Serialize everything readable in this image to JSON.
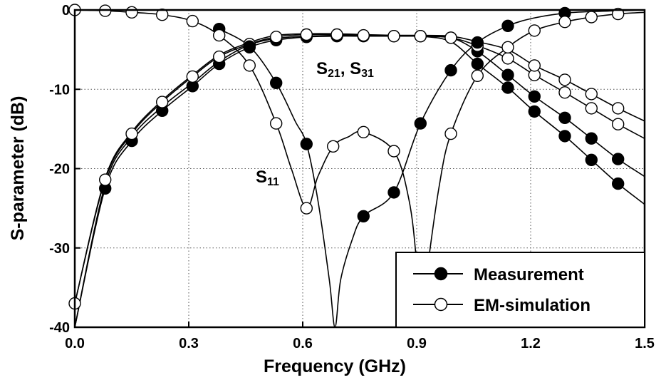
{
  "chart_data": {
    "type": "line",
    "title": "",
    "xlabel": "Frequency (GHz)",
    "ylabel": "S-parameter (dB)",
    "xlim": [
      0.0,
      1.5
    ],
    "ylim": [
      -40,
      0
    ],
    "xticks": [
      0.0,
      0.3,
      0.6,
      0.9,
      1.2,
      1.5
    ],
    "xtick_labels": [
      "0.0",
      "0.3",
      "0.6",
      "0.9",
      "1.2",
      "1.5"
    ],
    "yticks": [
      0,
      -10,
      -20,
      -30,
      -40
    ],
    "ytick_labels": [
      "0",
      "-10",
      "-20",
      "-30",
      "-40"
    ],
    "grid": true,
    "annotations": [
      {
        "main": "S",
        "sub1": "21",
        "sep": ", S",
        "sub2": "31",
        "x": 0.76,
        "y": -7.8
      },
      {
        "main": "S",
        "sub1": "11",
        "sep": "",
        "sub2": "",
        "x": 0.48,
        "y": -21.8
      }
    ],
    "legend": {
      "position": "bottom-right",
      "entries": [
        {
          "label": "Measurement",
          "marker": "filled-circle"
        },
        {
          "label": "EM-simulation",
          "marker": "open-circle"
        }
      ]
    },
    "series": [
      {
        "group": "S21-measurement",
        "marker": "filled",
        "x": [
          0.0,
          0.08,
          0.15,
          0.23,
          0.31,
          0.38,
          0.46,
          0.53,
          0.61,
          0.69,
          0.76,
          0.84,
          0.91,
          0.99,
          1.06,
          1.14,
          1.21,
          1.29,
          1.36,
          1.43,
          1.5
        ],
        "y": [
          -40.0,
          -22.5,
          -16.5,
          -12.7,
          -9.6,
          -6.8,
          -4.7,
          -3.8,
          -3.4,
          -3.3,
          -3.3,
          -3.3,
          -3.3,
          -3.5,
          -5.2,
          -8.2,
          -10.9,
          -13.6,
          -16.2,
          -18.8,
          -21.0
        ],
        "markers_at": [
          0.08,
          0.15,
          0.23,
          0.31,
          0.38,
          0.46,
          0.53,
          0.61,
          0.69,
          0.76,
          0.84,
          0.91,
          0.99,
          1.06,
          1.14,
          1.21,
          1.29,
          1.36,
          1.43
        ]
      },
      {
        "group": "S31-measurement",
        "marker": "filled",
        "x": [
          0.0,
          0.08,
          0.15,
          0.23,
          0.31,
          0.38,
          0.46,
          0.53,
          0.61,
          0.69,
          0.76,
          0.84,
          0.91,
          0.99,
          1.06,
          1.14,
          1.21,
          1.29,
          1.36,
          1.43,
          1.5
        ],
        "y": [
          -40.0,
          -22.0,
          -16.0,
          -12.2,
          -9.2,
          -6.5,
          -4.4,
          -3.6,
          -3.3,
          -3.2,
          -3.2,
          -3.2,
          -3.3,
          -4.0,
          -6.8,
          -9.8,
          -12.8,
          -15.9,
          -18.9,
          -21.9,
          -24.5
        ],
        "markers_at": [
          1.06,
          1.14,
          1.21,
          1.29,
          1.36,
          1.43
        ]
      },
      {
        "group": "S21-simulation",
        "marker": "open",
        "x": [
          0.0,
          0.08,
          0.15,
          0.23,
          0.31,
          0.38,
          0.46,
          0.53,
          0.61,
          0.69,
          0.76,
          0.84,
          0.91,
          0.99,
          1.06,
          1.14,
          1.21,
          1.29,
          1.36,
          1.43,
          1.5
        ],
        "y": [
          -37.0,
          -21.4,
          -15.6,
          -11.6,
          -8.4,
          -5.9,
          -4.3,
          -3.4,
          -3.1,
          -3.1,
          -3.2,
          -3.3,
          -3.3,
          -3.5,
          -4.5,
          -6.1,
          -8.2,
          -10.4,
          -12.4,
          -14.4,
          -16.2
        ],
        "markers_at": [
          0.0,
          0.08,
          0.15,
          0.23,
          0.31,
          0.38,
          0.46,
          0.53,
          0.61,
          0.69,
          0.76,
          0.84,
          0.91,
          0.99,
          1.06,
          1.14,
          1.21,
          1.29,
          1.36,
          1.43
        ]
      },
      {
        "group": "S31-simulation",
        "marker": "open",
        "x": [
          0.0,
          0.08,
          0.15,
          0.23,
          0.31,
          0.38,
          0.46,
          0.53,
          0.61,
          0.69,
          0.76,
          0.84,
          0.91,
          0.99,
          1.06,
          1.14,
          1.21,
          1.29,
          1.36,
          1.43,
          1.5
        ],
        "y": [
          -37.0,
          -21.2,
          -15.4,
          -11.4,
          -8.2,
          -5.7,
          -4.1,
          -3.2,
          -3.0,
          -3.0,
          -3.1,
          -3.2,
          -3.2,
          -3.3,
          -4.0,
          -5.0,
          -7.0,
          -8.8,
          -10.6,
          -12.4,
          -14.0
        ],
        "markers_at": [
          1.21,
          1.29,
          1.36,
          1.43
        ]
      },
      {
        "group": "S11-measurement",
        "marker": "filled",
        "x": [
          0.38,
          0.46,
          0.53,
          0.58,
          0.61,
          0.64,
          0.67,
          0.685,
          0.7,
          0.73,
          0.76,
          0.84,
          0.91,
          0.99,
          1.06,
          1.14,
          1.21,
          1.29,
          1.36,
          1.43,
          1.5
        ],
        "y": [
          -2.4,
          -4.6,
          -9.2,
          -14.0,
          -16.9,
          -24.0,
          -34.0,
          -40.0,
          -34.0,
          -29.0,
          -26.0,
          -23.0,
          -14.3,
          -7.6,
          -4.1,
          -2.0,
          -1.0,
          -0.4,
          -0.2,
          -0.1,
          0.0
        ],
        "markers_at": [
          0.38,
          0.46,
          0.53,
          0.61,
          0.76,
          0.84,
          0.91,
          0.99,
          1.06,
          1.14,
          1.29
        ]
      },
      {
        "group": "S11-simulation",
        "marker": "open",
        "x": [
          0.0,
          0.08,
          0.15,
          0.23,
          0.31,
          0.38,
          0.46,
          0.53,
          0.57,
          0.61,
          0.64,
          0.68,
          0.72,
          0.76,
          0.84,
          0.88,
          0.9,
          0.91,
          0.93,
          0.96,
          0.99,
          1.06,
          1.14,
          1.21,
          1.29,
          1.36,
          1.43,
          1.5
        ],
        "y": [
          0.0,
          -0.1,
          -0.3,
          -0.6,
          -1.4,
          -3.2,
          -7.0,
          -14.3,
          -20.0,
          -25.0,
          -21.0,
          -17.2,
          -16.0,
          -15.4,
          -17.8,
          -24.0,
          -32.0,
          -40.0,
          -32.0,
          -22.0,
          -15.6,
          -8.3,
          -4.7,
          -2.6,
          -1.5,
          -0.9,
          -0.5,
          -0.3
        ],
        "markers_at": [
          0.0,
          0.08,
          0.15,
          0.23,
          0.31,
          0.38,
          0.46,
          0.53,
          0.61,
          0.68,
          0.76,
          0.84,
          0.99,
          1.06,
          1.14,
          1.21,
          1.29,
          1.36,
          1.43
        ]
      }
    ]
  }
}
